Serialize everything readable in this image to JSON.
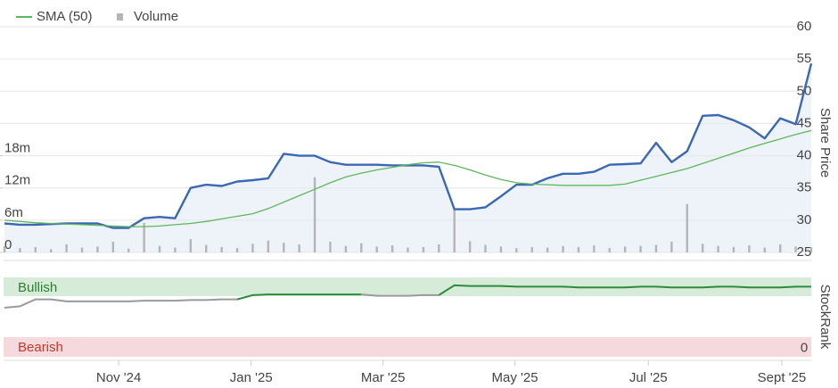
{
  "chart_data": {
    "type": "stock",
    "x_labels_axis": {
      "xlim": [
        0,
        52
      ],
      "xticks": [
        {
          "value": 7.36,
          "label": "Nov '24"
        },
        {
          "value": 15.9,
          "label": "Jan '25"
        },
        {
          "value": 24.4,
          "label": "Mar '25"
        },
        {
          "value": 32.9,
          "label": "May '25"
        },
        {
          "value": 41.5,
          "label": "Jul '25"
        },
        {
          "value": 50.1,
          "label": "Sept '25"
        }
      ]
    },
    "price": {
      "ylabel": "Share Price",
      "ylim": [
        25,
        60
      ],
      "yticks": [
        25,
        30,
        35,
        40,
        45,
        50,
        55,
        60
      ],
      "y2lim": [
        0,
        42
      ],
      "y2ticks": [
        0,
        {
          "value": 6,
          "label": "6m"
        },
        {
          "value": 12,
          "label": "12m"
        },
        {
          "value": 18,
          "label": "18m"
        }
      ],
      "grid": true,
      "series": [
        {
          "color": "#3b68b2",
          "values": [
            29.5,
            29.3,
            29.3,
            29.4,
            29.5,
            29.5,
            29.5,
            28.8,
            28.8,
            30.3,
            30.5,
            30.3,
            35,
            35.5,
            35.3,
            36,
            36.2,
            36.5,
            40.3,
            40,
            40,
            39,
            38.6,
            38.6,
            38.6,
            38.5,
            38.5,
            38.5,
            38.3,
            31.7,
            31.7,
            32,
            33.7,
            35.5,
            35.5,
            36.5,
            37.2,
            37.2,
            37.5,
            38.6,
            38.7,
            38.8,
            42,
            39,
            40.7,
            46.2,
            46.3,
            45.5,
            44.4,
            42.7,
            45.8,
            44.9,
            54.3
          ]
        },
        {
          "name": "SMA (50)",
          "color": "#5cb85c",
          "values": [
            30,
            29.8,
            29.6,
            29.5,
            29.4,
            29.3,
            29.2,
            29.1,
            29,
            29,
            29.1,
            29.3,
            29.5,
            29.8,
            30.2,
            30.6,
            31,
            31.8,
            32.8,
            33.8,
            34.8,
            35.8,
            36.7,
            37.3,
            37.8,
            38.2,
            38.6,
            38.9,
            39,
            38.5,
            37.8,
            37,
            36.3,
            35.8,
            35.6,
            35.5,
            35.4,
            35.4,
            35.4,
            35.4,
            35.6,
            36.2,
            36.8,
            37.4,
            38,
            38.8,
            39.6,
            40.4,
            41.2,
            41.9,
            42.6,
            43.3,
            43.9
          ]
        },
        {
          "name": "Volume",
          "color": "#b5b5b5",
          "axis": "y2",
          "values": [
            1.2,
            0.8,
            1,
            0.6,
            1.5,
            0.9,
            1.1,
            2.0,
            0.7,
            5.5,
            1.2,
            0.9,
            2.5,
            1.4,
            1.0,
            0.8,
            1.6,
            2.2,
            1.8,
            1.5,
            14,
            2.0,
            1.2,
            1.7,
            1.1,
            1.3,
            0.9,
            1.0,
            1.5,
            8,
            2.1,
            1.4,
            1.1,
            0.8,
            1.0,
            0.9,
            1.2,
            1.0,
            1.3,
            0.8,
            1.1,
            1.2,
            1.4,
            2.0,
            9,
            1.6,
            1.2,
            1.0,
            1.3,
            0.9,
            1.5,
            1.1,
            1.0
          ]
        }
      ]
    },
    "rank": {
      "ylabel": "StockRank",
      "bullish": "Bullish",
      "bearish": "Bearish",
      "ylim": [
        -12,
        100
      ],
      "yticks": [
        0
      ],
      "values": [
        58,
        60,
        70,
        70,
        67,
        67,
        67,
        67,
        67,
        68,
        68,
        68,
        69,
        69,
        70,
        70,
        76,
        77,
        77,
        77,
        77,
        77,
        77,
        77,
        75,
        75,
        75,
        76,
        76,
        90,
        89,
        89,
        89,
        88,
        88,
        88,
        88,
        87,
        87,
        87,
        87,
        88,
        88,
        87,
        87,
        87,
        88,
        88,
        87,
        87,
        87,
        88,
        88
      ],
      "colors": [
        "#9a9a9a",
        "#9a9a9a",
        "#9a9a9a",
        "#9a9a9a",
        "#9a9a9a",
        "#9a9a9a",
        "#9a9a9a",
        "#9a9a9a",
        "#9a9a9a",
        "#9a9a9a",
        "#9a9a9a",
        "#9a9a9a",
        "#9a9a9a",
        "#9a9a9a",
        "#9a9a9a",
        "#9a9a9a",
        "#2e8b3e",
        "#2e8b3e",
        "#2e8b3e",
        "#2e8b3e",
        "#2e8b3e",
        "#2e8b3e",
        "#2e8b3e",
        "#2e8b3e",
        "#9a9a9a",
        "#9a9a9a",
        "#9a9a9a",
        "#9a9a9a",
        "#9a9a9a",
        "#2e8b3e",
        "#2e8b3e",
        "#2e8b3e",
        "#2e8b3e",
        "#2e8b3e",
        "#2e8b3e",
        "#2e8b3e",
        "#2e8b3e",
        "#2e8b3e",
        "#2e8b3e",
        "#2e8b3e",
        "#2e8b3e",
        "#2e8b3e",
        "#2e8b3e",
        "#2e8b3e",
        "#2e8b3e",
        "#2e8b3e",
        "#2e8b3e",
        "#2e8b3e",
        "#2e8b3e",
        "#2e8b3e",
        "#2e8b3e",
        "#2e8b3e",
        "#2e8b3e"
      ]
    }
  }
}
